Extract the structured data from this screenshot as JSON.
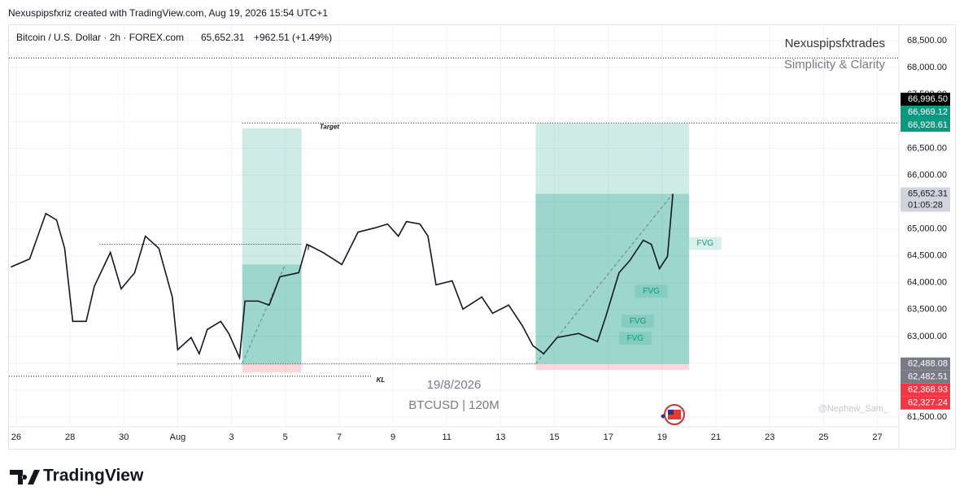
{
  "header": "Nexuspipsfxriz created with TradingView.com, Aug 19, 2026 15:54 UTC+1",
  "footer": "TradingView",
  "chart_data": {
    "type": "line",
    "legend": {
      "symbol": "Bitcoin / U.S. Dollar · 2h · FOREX.com",
      "price": "65,652.31",
      "change": "+962.51 (+1.49%)"
    },
    "watermarks": {
      "author": "Nexuspipsfxtrades",
      "tagline": "Simplicity & Clarity",
      "date": "19/8/2026",
      "instrument": "BTCUSD | 120M",
      "credit": "@Nephew_Sam_"
    },
    "x": [
      -0.2,
      0.5,
      1.1,
      1.5,
      1.8,
      2.1,
      2.6,
      2.9,
      3.5,
      3.9,
      4.4,
      4.8,
      5.3,
      5.8,
      6.0,
      6.5,
      6.8,
      7.1,
      7.6,
      7.9,
      8.3,
      8.5,
      9.0,
      9.4,
      9.8,
      10.5,
      10.8,
      11.4,
      12.1,
      12.7,
      13.3,
      13.8,
      14.2,
      14.5,
      15.0,
      15.3,
      15.6,
      16.2,
      16.6,
      17.3,
      17.7,
      18.3,
      18.8,
      19.2,
      19.6,
      20.1,
      20.9,
      21.6,
      21.9,
      22.4,
      22.8,
      23.3,
      23.6,
      23.9,
      24.2,
      24.4
    ],
    "series": [
      {
        "name": "BTCUSD",
        "color": "#131722",
        "values": [
          64292,
          64443,
          65287,
          65167,
          64639,
          63281,
          63281,
          63930,
          64563,
          63885,
          64186,
          64865,
          64639,
          63734,
          62753,
          62980,
          62678,
          63130,
          63281,
          63055,
          62603,
          63658,
          63658,
          63583,
          64110,
          64186,
          64714,
          64563,
          64337,
          64940,
          65016,
          65091,
          64865,
          65137,
          65091,
          64865,
          63960,
          64035,
          63508,
          63734,
          63432,
          63583,
          63206,
          62829,
          62678,
          62980,
          63055,
          62905,
          63357,
          64186,
          64412,
          64790,
          64714,
          64261,
          64488,
          65652.31
        ]
      }
    ],
    "xlim": [
      -0.27,
      32.8
    ],
    "ylim": [
      61320,
      68790
    ],
    "xticks": [
      {
        "value": 0,
        "label": "26"
      },
      {
        "value": 2,
        "label": "28"
      },
      {
        "value": 4,
        "label": "30"
      },
      {
        "value": 6,
        "label": "Aug"
      },
      {
        "value": 8,
        "label": "3"
      },
      {
        "value": 10,
        "label": "5"
      },
      {
        "value": 12,
        "label": "7"
      },
      {
        "value": 14,
        "label": "9"
      },
      {
        "value": 16,
        "label": "11"
      },
      {
        "value": 18,
        "label": "13"
      },
      {
        "value": 20,
        "label": "15"
      },
      {
        "value": 22,
        "label": "17"
      },
      {
        "value": 24,
        "label": "19"
      },
      {
        "value": 26,
        "label": "21"
      },
      {
        "value": 28,
        "label": "23"
      },
      {
        "value": 30,
        "label": "25"
      },
      {
        "value": 32,
        "label": "27"
      }
    ],
    "yticks": [
      {
        "value": 61500,
        "label": "61,500.00"
      },
      {
        "value": 62000,
        "label": "62,000.00"
      },
      {
        "value": 62500,
        "label": "62,500.00"
      },
      {
        "value": 63000,
        "label": "63,000.00"
      },
      {
        "value": 63500,
        "label": "63,500.00"
      },
      {
        "value": 64000,
        "label": "64,000.00"
      },
      {
        "value": 64500,
        "label": "64,500.00"
      },
      {
        "value": 65000,
        "label": "65,000.00"
      },
      {
        "value": 65500,
        "label": "65,500.00"
      },
      {
        "value": 66000,
        "label": "66,000.00"
      },
      {
        "value": 66500,
        "label": "66,500.00"
      },
      {
        "value": 67000,
        "label": "67,000.00"
      },
      {
        "value": 67500,
        "label": "67,500.00"
      },
      {
        "value": 68000,
        "label": "68,000.00"
      },
      {
        "value": 68500,
        "label": "68,500.00"
      }
    ],
    "grid": true,
    "positions": [
      {
        "x0": 8.4,
        "x1": 10.6,
        "entry": 62497,
        "target": 66871,
        "stop": 62331,
        "current": 64337
      },
      {
        "x0": 19.3,
        "x1": 25.0,
        "entry": 62488.08,
        "target": 66962,
        "stop": 62380,
        "current": 65652.31
      }
    ],
    "levels": [
      {
        "value": 68180
      },
      {
        "value": 66969.12,
        "x0": 8.4,
        "label": "Target"
      },
      {
        "value": 64714,
        "x0": 3.1,
        "x1": 10.6,
        "label": "T"
      },
      {
        "value": 62488.08,
        "x0": 6.0,
        "x1": 19.3
      },
      {
        "value": 62260,
        "x0": -0.27,
        "x1": 13.2,
        "label": "KL"
      }
    ],
    "annotations": [
      {
        "text": "FVG",
        "x": 25.6,
        "y": 64730
      },
      {
        "text": "FVG",
        "x": 23.6,
        "y": 63840
      },
      {
        "text": "FVG",
        "x": 23.1,
        "y": 63282
      },
      {
        "text": "FVG",
        "x": 23.0,
        "y": 62965
      }
    ],
    "price_labels": [
      {
        "value": 66996.5,
        "label": "66,996.50",
        "color": "#000000",
        "text_color": "#ffffff"
      },
      {
        "value": 66969.12,
        "label": "66,969.12",
        "color": "#089981",
        "text_color": "#ffffff"
      },
      {
        "value": 66928.61,
        "label": "66,928.61",
        "color": "#089981",
        "text_color": "#ffffff"
      },
      {
        "value": 65652.31,
        "label": "65,652.31",
        "sublabel": "01:05:28",
        "color": "#d1d4dc",
        "text_color": "#131722"
      },
      {
        "value": 62488.08,
        "label": "62,488.08",
        "color": "#787b86",
        "text_color": "#ffffff"
      },
      {
        "value": 62482.51,
        "label": "62,482.51",
        "color": "#787b86",
        "text_color": "#ffffff"
      },
      {
        "value": 62368.93,
        "label": "62,368.93",
        "color": "#f23645",
        "text_color": "#ffffff"
      },
      {
        "value": 62327.24,
        "label": "62,327.24",
        "color": "#f23645",
        "text_color": "#ffffff"
      }
    ]
  }
}
